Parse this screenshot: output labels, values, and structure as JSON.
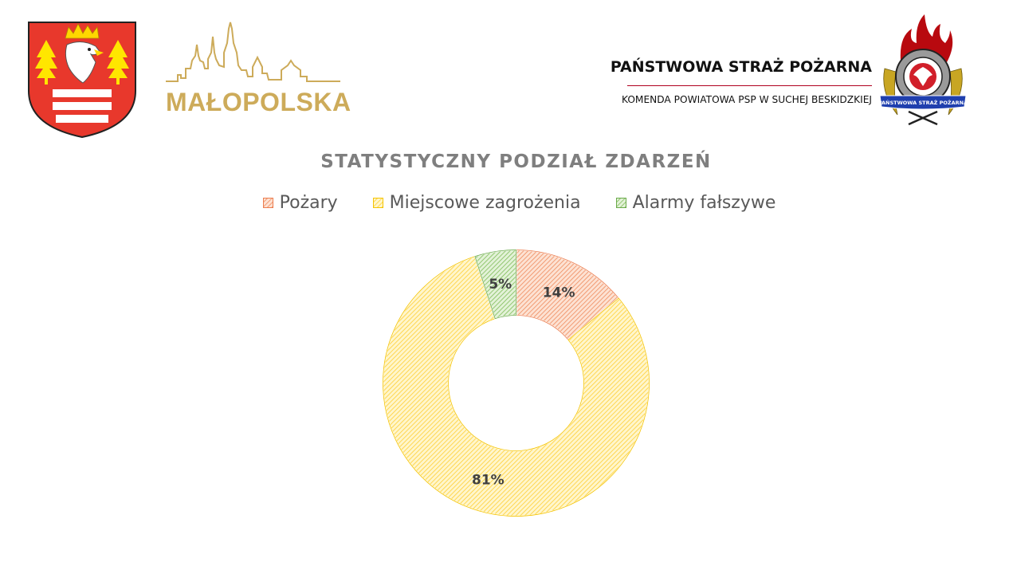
{
  "header": {
    "region_name": "MAŁOPOLSKA",
    "org_title": "PAŃSTWOWA STRAŻ POŻARNA",
    "org_subtitle": "KOMENDA POWIATOWA PSP W SUCHEJ BESKIDZKIEJ",
    "emblem_ribbon_text": "PAŃSTWOWA STRAŻ POŻARNA",
    "colors": {
      "region_gold": "#cdab5a",
      "divider_red": "#b00020",
      "coat_red": "#e8382c"
    }
  },
  "chart_data": {
    "type": "donut",
    "title": "STATYSTYCZNY PODZIAŁ ZDARZEŃ",
    "legend_position": "top",
    "series": [
      {
        "name": "Pożary",
        "value": 14,
        "label": "14%",
        "color": "#f4a582"
      },
      {
        "name": "Miejscowe zagrożenia",
        "value": 81,
        "label": "81%",
        "color": "#ffd24d"
      },
      {
        "name": "Alarmy fałszywe",
        "value": 5,
        "label": "5%",
        "color": "#8cc56b"
      }
    ]
  }
}
